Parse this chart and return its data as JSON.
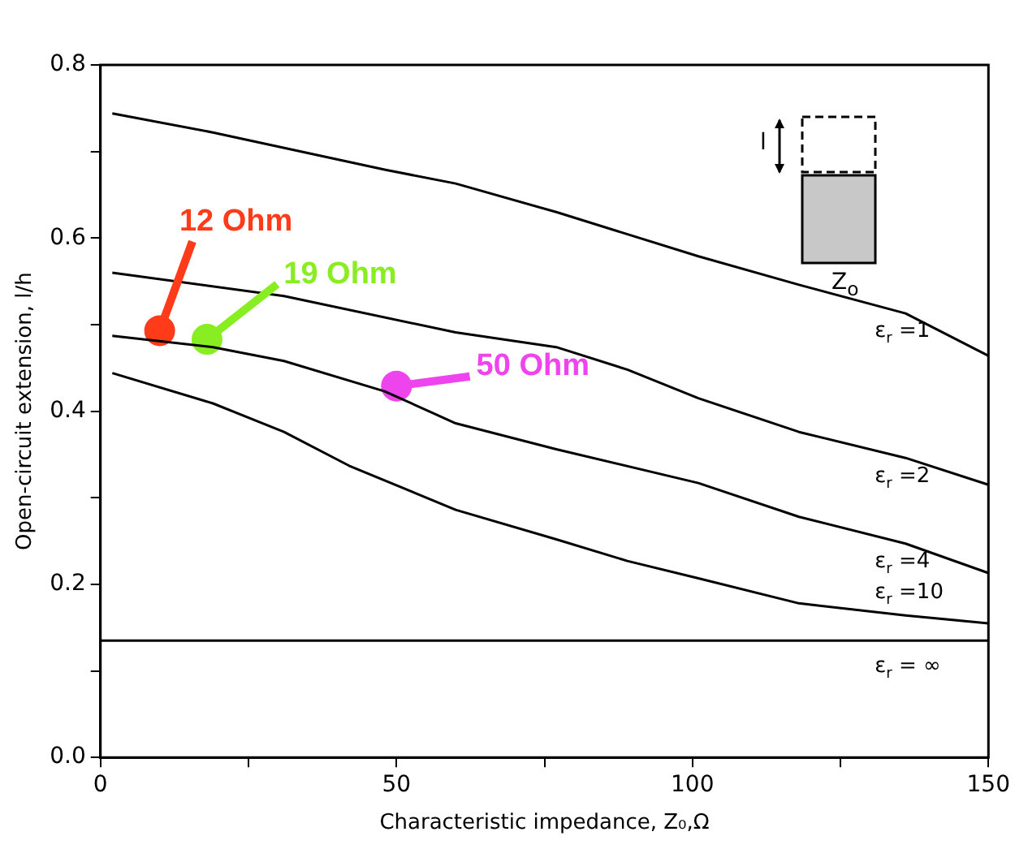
{
  "chart_data": {
    "type": "line",
    "xlabel": "Characteristic impedance, Z₀,Ω",
    "ylabel": "Open-circuit extension, l/h",
    "xlim": [
      0,
      150
    ],
    "xticks": [
      0,
      {
        "value": 25,
        "label": null
      },
      50,
      {
        "value": 75,
        "label": null
      },
      100,
      {
        "value": 125,
        "label": null
      },
      150
    ],
    "ylim": [
      0,
      0.8
    ],
    "yticks": [
      {
        "value": 0,
        "label": "0.0"
      },
      {
        "value": 0.1,
        "label": null
      },
      {
        "value": 0.2,
        "label": "0.2"
      },
      {
        "value": 0.3,
        "label": null
      },
      {
        "value": 0.4,
        "label": "0.4"
      },
      {
        "value": 0.5,
        "label": null
      },
      {
        "value": 0.6,
        "label": "0.6"
      },
      {
        "value": 0.7,
        "label": null
      },
      {
        "value": 0.8,
        "label": "0.8"
      }
    ],
    "grid": false,
    "legend": false,
    "marker": "none",
    "line_style": "solid",
    "series": [
      {
        "name": "ε$_{r}$ =1",
        "color": "#000000",
        "x": [
          2,
          19,
          48,
          60,
          77,
          101,
          118,
          136,
          150
        ],
        "values": [
          0.744,
          0.722,
          0.679,
          0.663,
          0.63,
          0.579,
          0.546,
          0.513,
          0.464
        ]
      },
      {
        "name": "ε$_{r}$ =2",
        "color": "#000000",
        "x": [
          2,
          31,
          60,
          77,
          89,
          101,
          118,
          136,
          150
        ],
        "values": [
          0.56,
          0.533,
          0.491,
          0.474,
          0.448,
          0.415,
          0.376,
          0.346,
          0.315
        ]
      },
      {
        "name": "ε$_{r}$ =4",
        "color": "#000000",
        "x": [
          2,
          19,
          31,
          48,
          60,
          77,
          101,
          118,
          136,
          150
        ],
        "values": [
          0.487,
          0.474,
          0.458,
          0.423,
          0.386,
          0.356,
          0.317,
          0.278,
          0.247,
          0.213
        ]
      },
      {
        "name": "ε$_{r}$ =10",
        "color": "#000000",
        "x": [
          2,
          19,
          31,
          42,
          60,
          77,
          89,
          101,
          118,
          136,
          150
        ],
        "values": [
          0.444,
          0.409,
          0.376,
          0.337,
          0.286,
          0.252,
          0.227,
          0.207,
          0.178,
          0.164,
          0.155
        ]
      },
      {
        "name": "ε$_{r}$ = ∞",
        "color": "#000000",
        "x": [
          0,
          150
        ],
        "values": [
          0.135,
          0.135
        ]
      },
      {
        "type": "scatter",
        "marker": "circle",
        "colors": [
          "#ff3b1a",
          "#88ee22",
          "#ee44ee"
        ],
        "x": [
          10,
          18,
          50
        ],
        "values": [
          0.493,
          0.483,
          0.429
        ]
      }
    ],
    "annotations": [
      {
        "text": "12 Ohm",
        "x": 10,
        "y": 0.493
      },
      {
        "text": "19 Ohm",
        "x": 18,
        "y": 0.483
      },
      {
        "text": "50 Ohm",
        "x": 50,
        "y": 0.429
      },
      "l",
      "Z$_{o}$"
    ]
  }
}
